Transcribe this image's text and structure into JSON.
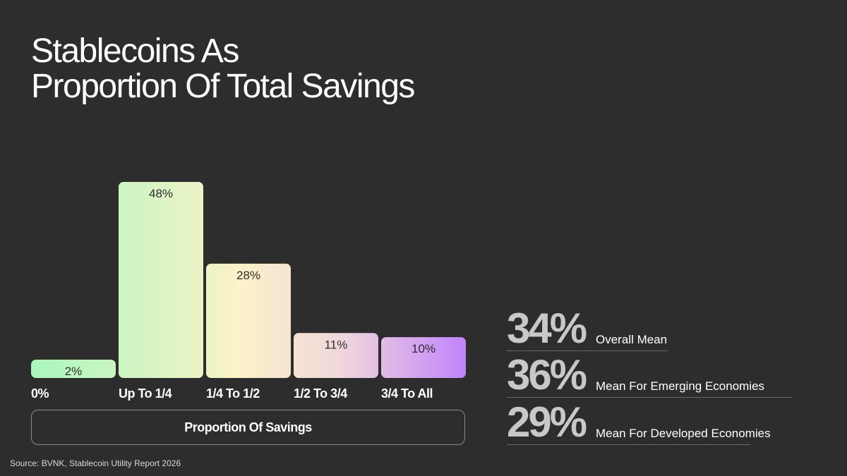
{
  "title_lines": [
    "Stablecoins As",
    "Proportion Of Total Savings"
  ],
  "chart_data": {
    "type": "bar",
    "title": "Stablecoins As Proportion Of Total Savings",
    "xlabel": "Proportion Of Savings",
    "ylabel": "",
    "ylim": [
      0,
      50
    ],
    "categories": [
      "0%",
      "Up To 1/4",
      "1/4 To 1/2",
      "1/2 To 3/4",
      "3/4 To All"
    ],
    "values": [
      2,
      48,
      28,
      11,
      10
    ],
    "value_labels": [
      "2%",
      "48%",
      "28%",
      "11%",
      "10%"
    ],
    "grid": false,
    "legend": "none"
  },
  "stats": [
    {
      "value": "34%",
      "label": "Overall Mean"
    },
    {
      "value": "36%",
      "label": "Mean For Emerging Economies"
    },
    {
      "value": "29%",
      "label": "Mean For Developed Economies"
    }
  ],
  "source": "Source: BVNK, Stablecoin Utility Report 2026",
  "colors": {
    "background": "#2d2d2d",
    "bar_gradient_start": "#a9f7bd",
    "bar_gradient_mid": "#fbf2c8",
    "bar_gradient_end": "#c184fb",
    "stat_number": "#c8c8c8"
  }
}
